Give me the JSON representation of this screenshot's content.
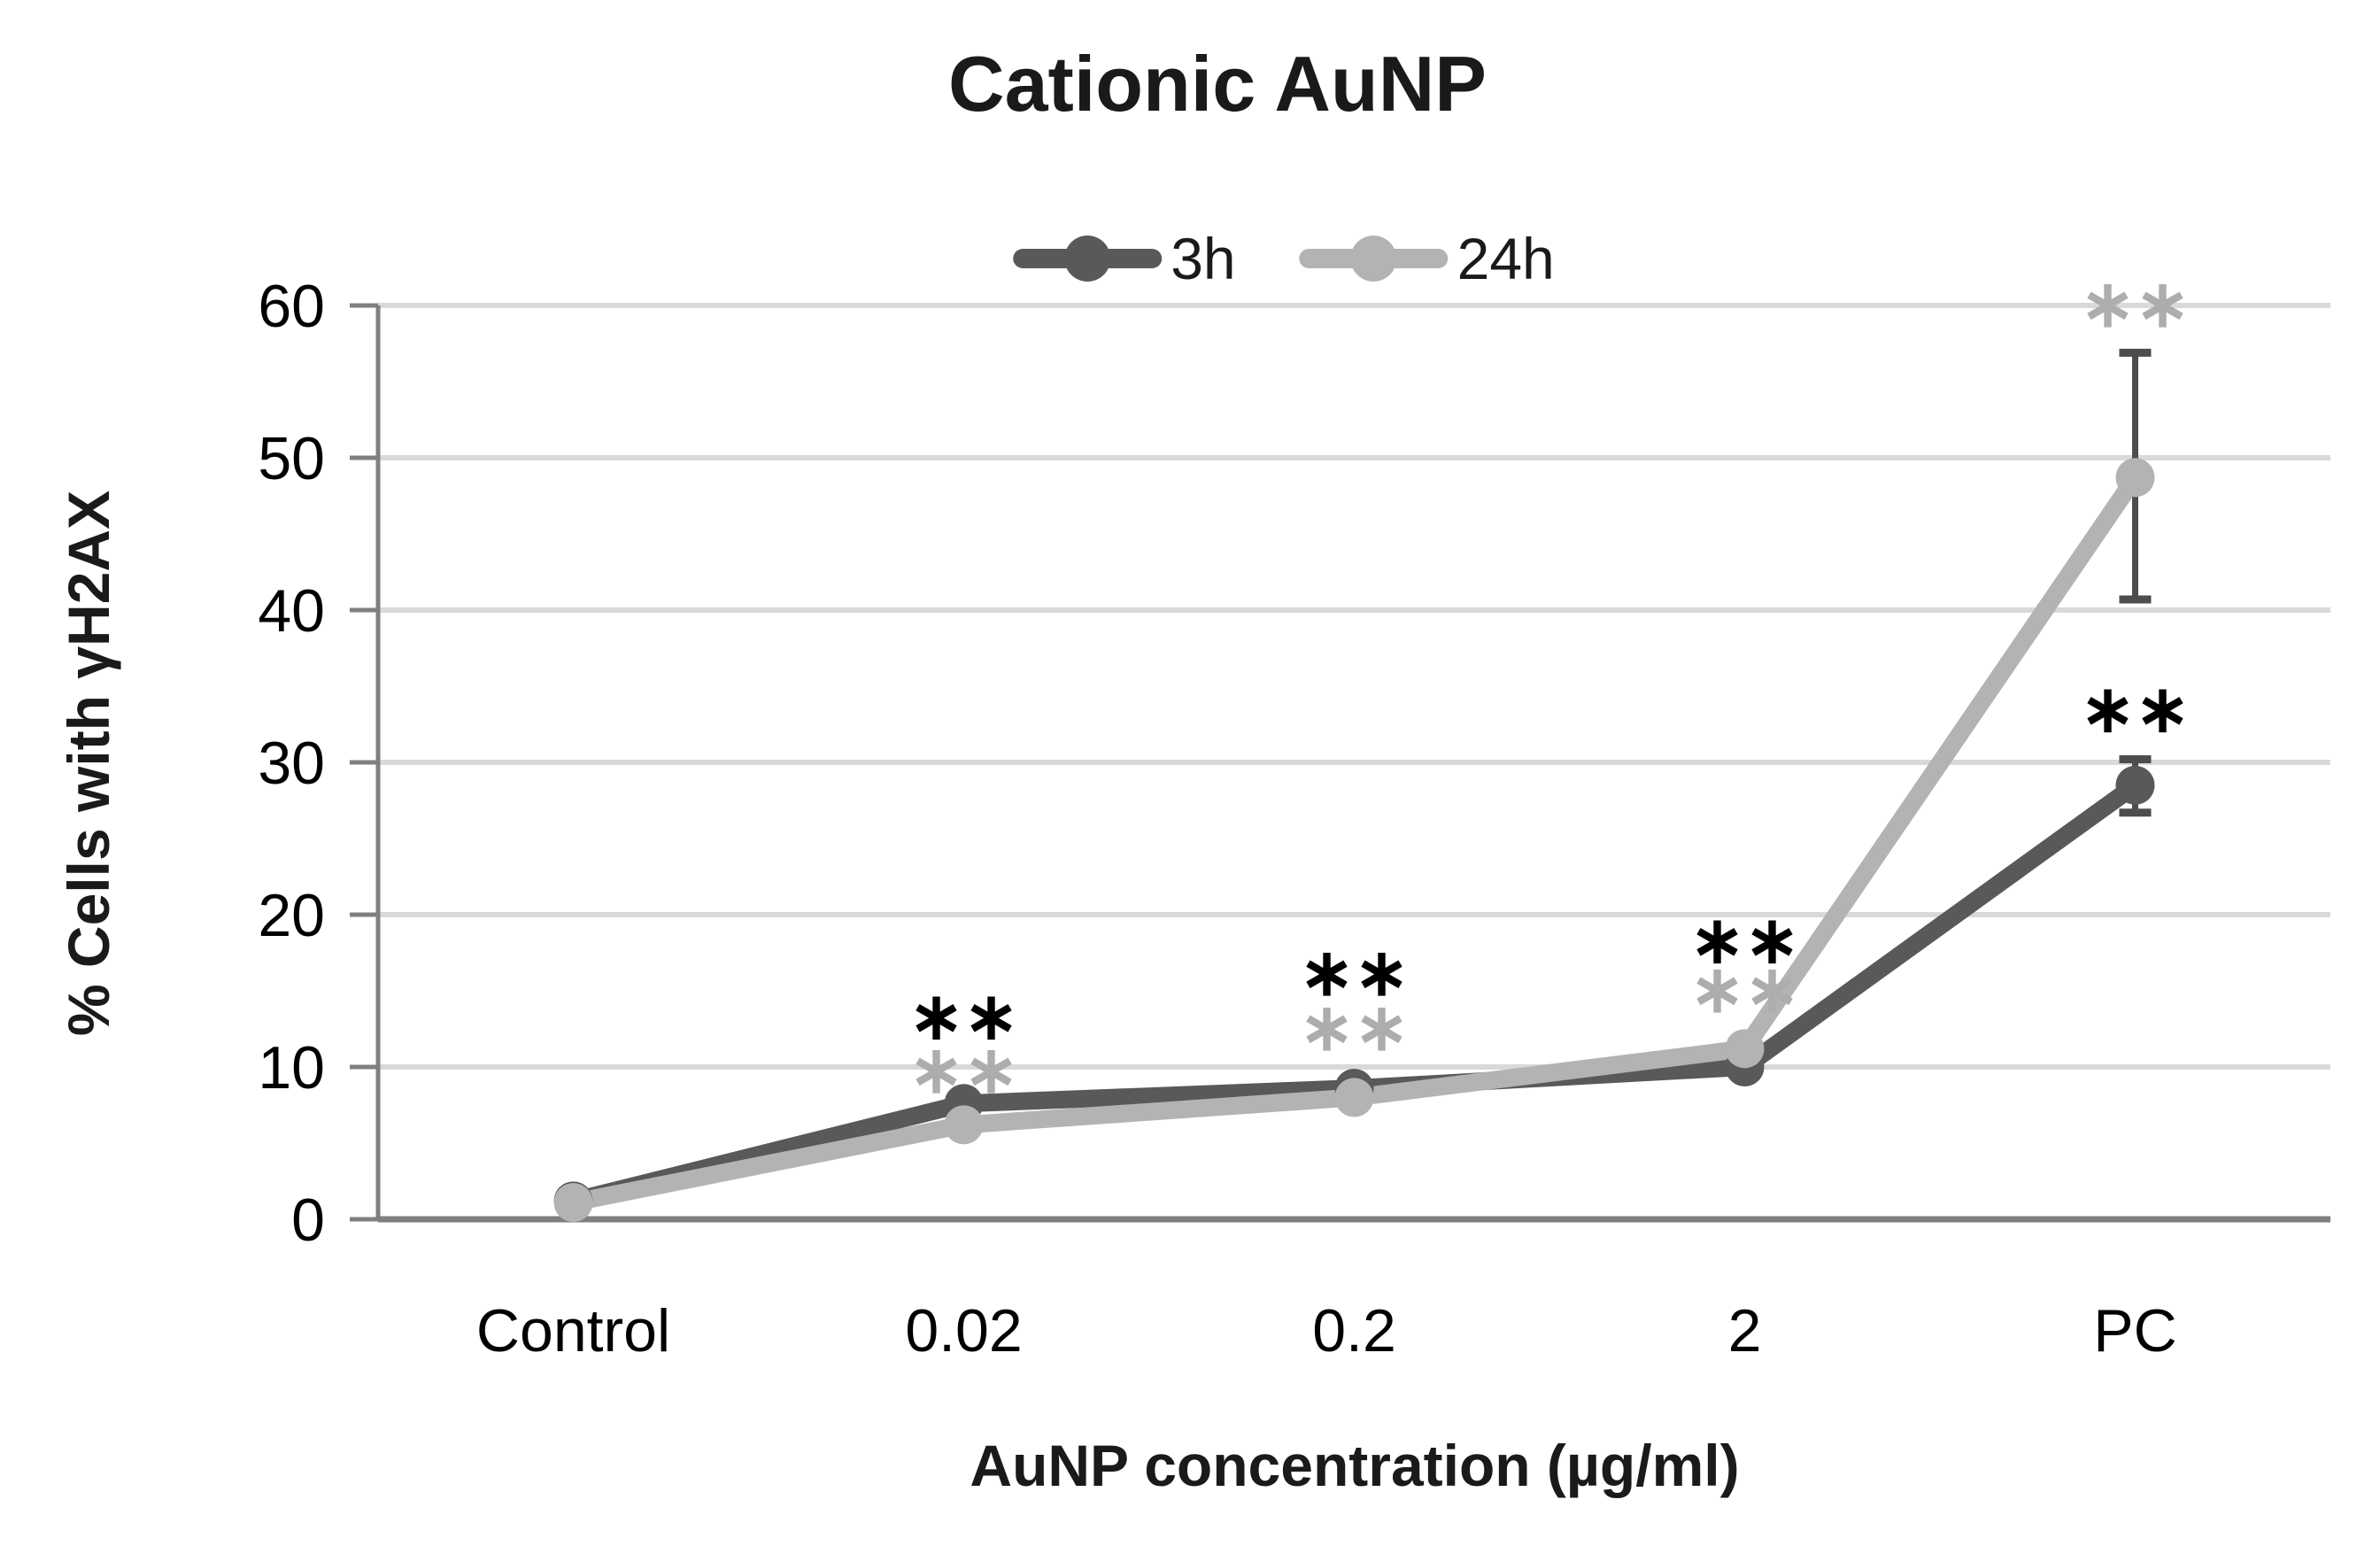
{
  "figure": {
    "title": "Cationic AuNP",
    "y_axis_title": "% Cells with γH2AX",
    "x_axis_title": "AuNP concentration (µg/ml)"
  },
  "legend": {
    "items": [
      {
        "label": "3h",
        "color": "#595959"
      },
      {
        "label": "24h",
        "color": "#b3b3b3"
      }
    ]
  },
  "chart_data": {
    "type": "line",
    "title": "Cationic AuNP",
    "xlabel": "AuNP concentration (µg/ml)",
    "ylabel": "% Cells with γH2AX",
    "categories": [
      "Control",
      "0.02",
      "0.2",
      "2",
      "PC"
    ],
    "series": [
      {
        "name": "3h",
        "color": "#595959",
        "values": [
          1.2,
          7.6,
          8.6,
          10.0,
          28.5
        ],
        "error_bars": [
          null,
          null,
          null,
          null,
          {
            "low": 26.7,
            "high": 30.2
          }
        ]
      },
      {
        "name": "24h",
        "color": "#b3b3b3",
        "values": [
          1.1,
          6.2,
          8.0,
          11.2,
          48.7
        ],
        "error_bars": [
          null,
          null,
          null,
          null,
          {
            "low": 40.7,
            "high": 56.9
          }
        ]
      }
    ],
    "significance_marks": [
      {
        "category_index": 1,
        "series": "3h",
        "text": "**",
        "color": "#000000",
        "y": 13.3
      },
      {
        "category_index": 1,
        "series": "24h",
        "text": "**",
        "color": "#adadad",
        "y": 9.8
      },
      {
        "category_index": 2,
        "series": "3h",
        "text": "**",
        "color": "#000000",
        "y": 16.2
      },
      {
        "category_index": 2,
        "series": "24h",
        "text": "**",
        "color": "#adadad",
        "y": 12.6
      },
      {
        "category_index": 3,
        "series": "3h",
        "text": "**",
        "color": "#000000",
        "y": 18.3
      },
      {
        "category_index": 3,
        "series": "24h",
        "text": "**",
        "color": "#adadad",
        "y": 15.1
      },
      {
        "category_index": 4,
        "series": "3h",
        "text": "**",
        "color": "#000000",
        "y": 33.5
      },
      {
        "category_index": 4,
        "series": "24h",
        "text": "**",
        "color": "#adadad",
        "y": 60.1
      }
    ],
    "y_ticks": [
      0,
      10,
      20,
      30,
      40,
      50,
      60
    ],
    "ylim": [
      0,
      60
    ],
    "grid": "horizontal",
    "legend_position": "top"
  },
  "colors": {
    "background": "#ffffff",
    "gridline": "#d9d9d9",
    "axis": "#7f7f7f",
    "error_bar": "#4d4d4d",
    "tick_label": "#000000",
    "significance_black": "#000000",
    "significance_gray": "#adadad"
  }
}
